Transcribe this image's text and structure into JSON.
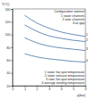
{
  "chart_data": {
    "type": "line",
    "title": "Configuration nominal",
    "x_label": "p(bar)",
    "y_label": "T(°C)",
    "x": [
      1,
      2,
      3,
      4,
      5,
      6
    ],
    "series": [
      {
        "name": "1 stator hot spot temperature",
        "color": "#2b5c9e",
        "values": [
          130,
          118,
          110,
          104,
          100,
          97
        ]
      },
      {
        "name": "2 stator exhaust temperature",
        "color": "#2b5c9e",
        "values": [
          115,
          105,
          98,
          94,
          91,
          89
        ]
      },
      {
        "name": "3 rotor hot spot temperature",
        "color": "#2b5c9e",
        "values": [
          95,
          87,
          82,
          79,
          77,
          75
        ]
      },
      {
        "name": "4 average winding temperature",
        "color": "#2b5c9e",
        "values": [
          70,
          65,
          62,
          60,
          58,
          57
        ]
      }
    ],
    "end_labels": [
      "1",
      "2",
      "3",
      "4"
    ],
    "annotations": [
      "1 stator channels",
      "2 rotor channels",
      "3 air gap"
    ],
    "xlim": [
      0,
      6
    ],
    "xticks": [
      0,
      1,
      2,
      3,
      4,
      5,
      6
    ],
    "ylim": [
      20,
      140
    ],
    "yticks": [
      20,
      40,
      60,
      80,
      100,
      120,
      140
    ],
    "grid": false,
    "legend": "lower right"
  }
}
